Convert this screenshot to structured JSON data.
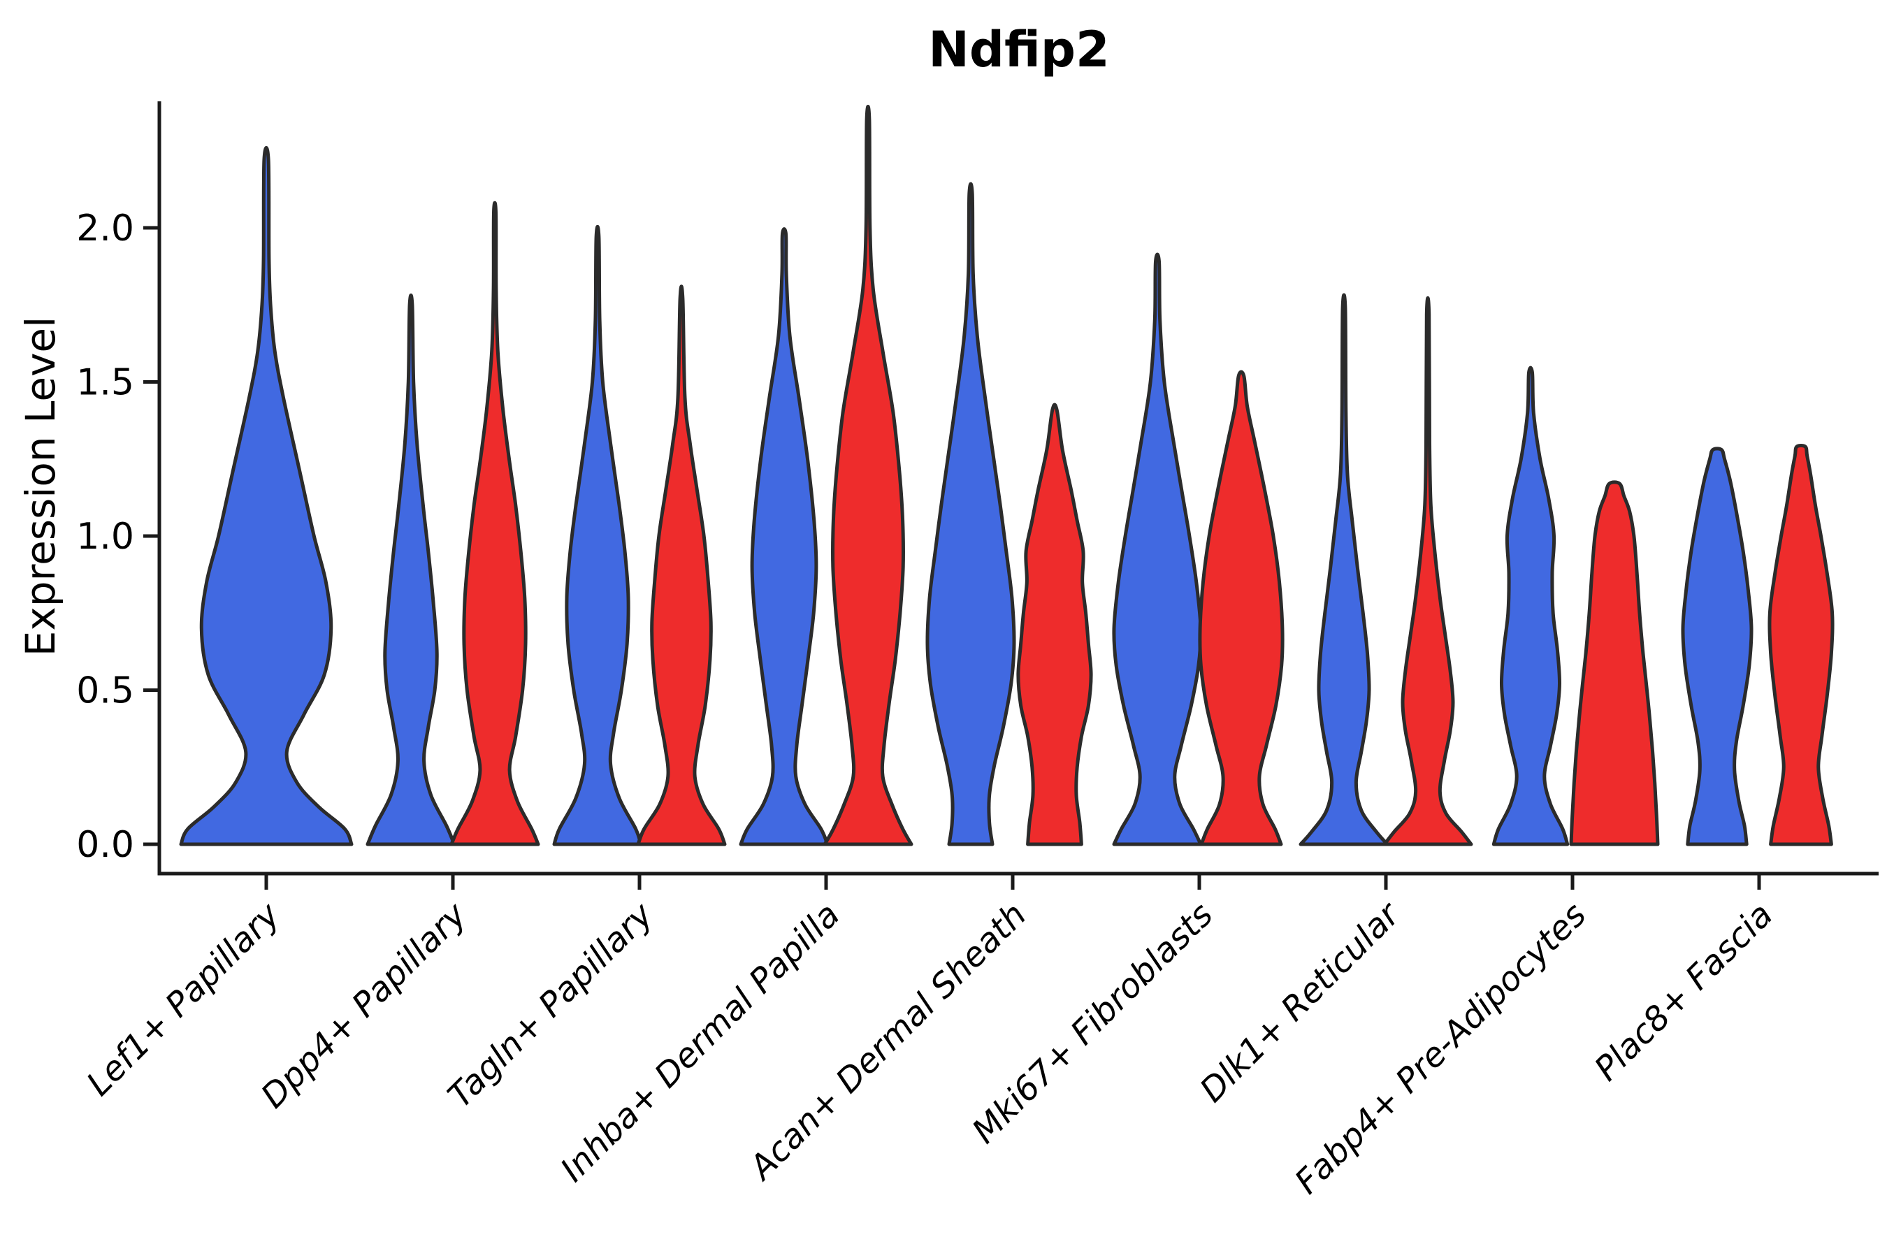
{
  "chart_data": {
    "type": "violin",
    "title": "Ndfip2",
    "ylabel": "Expression Level",
    "xlabel": "",
    "grid": false,
    "legend": "none",
    "ylim": [
      -0.095,
      2.45
    ],
    "yticks": [
      "0.0",
      "0.5",
      "1.0",
      "1.5",
      "2.0"
    ],
    "ytick_values": [
      0,
      0.5,
      1.0,
      1.5,
      2.0
    ],
    "colors": {
      "blue": "#4169E1",
      "red": "#EE2C2C",
      "outline": "#2b2b2b",
      "axis": "#1a1a1a"
    },
    "categories": [
      "Lef1+ Papillary",
      "Dpp4+ Papillary",
      "Tagln+ Papillary",
      "Inhba+ Dermal Papilla",
      "Acan+ Dermal Sheath",
      "Mki67+ Fibroblasts",
      "Dlk1+ Reticular",
      "Fabp4+ Pre-Adipocytes",
      "Plac8+ Fascia"
    ],
    "violins": [
      {
        "category": "Lef1+ Papillary",
        "series": "blue",
        "layout": "single",
        "peak": 2.22,
        "profile": [
          [
            0,
            1.0
          ],
          [
            0.05,
            0.92
          ],
          [
            0.12,
            0.62
          ],
          [
            0.2,
            0.36
          ],
          [
            0.3,
            0.24
          ],
          [
            0.42,
            0.44
          ],
          [
            0.55,
            0.68
          ],
          [
            0.7,
            0.76
          ],
          [
            0.85,
            0.7
          ],
          [
            1.0,
            0.56
          ],
          [
            1.2,
            0.4
          ],
          [
            1.45,
            0.2
          ],
          [
            1.6,
            0.1
          ],
          [
            1.75,
            0.05
          ],
          [
            1.9,
            0.032
          ],
          [
            2.22,
            0.025
          ]
        ]
      },
      {
        "category": "Dpp4+ Papillary",
        "series": "blue",
        "layout": "pair-left",
        "peak": 1.75,
        "profile": [
          [
            0,
            1.0
          ],
          [
            0.06,
            0.82
          ],
          [
            0.16,
            0.46
          ],
          [
            0.27,
            0.3
          ],
          [
            0.38,
            0.4
          ],
          [
            0.5,
            0.55
          ],
          [
            0.62,
            0.6
          ],
          [
            0.78,
            0.52
          ],
          [
            0.95,
            0.4
          ],
          [
            1.1,
            0.28
          ],
          [
            1.3,
            0.14
          ],
          [
            1.5,
            0.06
          ],
          [
            1.75,
            0.03
          ]
        ]
      },
      {
        "category": "Dpp4+ Papillary",
        "series": "red",
        "layout": "pair-right",
        "peak": 2.05,
        "profile": [
          [
            0,
            1.0
          ],
          [
            0.05,
            0.85
          ],
          [
            0.14,
            0.52
          ],
          [
            0.24,
            0.34
          ],
          [
            0.35,
            0.48
          ],
          [
            0.5,
            0.64
          ],
          [
            0.65,
            0.71
          ],
          [
            0.8,
            0.69
          ],
          [
            0.95,
            0.6
          ],
          [
            1.1,
            0.48
          ],
          [
            1.25,
            0.33
          ],
          [
            1.42,
            0.18
          ],
          [
            1.6,
            0.07
          ],
          [
            1.8,
            0.03
          ],
          [
            2.05,
            0.025
          ]
        ]
      },
      {
        "category": "Tagln+ Papillary",
        "series": "blue",
        "layout": "pair-left",
        "peak": 1.97,
        "profile": [
          [
            0,
            1.0
          ],
          [
            0.05,
            0.88
          ],
          [
            0.15,
            0.5
          ],
          [
            0.26,
            0.3
          ],
          [
            0.36,
            0.37
          ],
          [
            0.5,
            0.55
          ],
          [
            0.65,
            0.68
          ],
          [
            0.8,
            0.71
          ],
          [
            0.95,
            0.63
          ],
          [
            1.1,
            0.5
          ],
          [
            1.3,
            0.3
          ],
          [
            1.5,
            0.12
          ],
          [
            1.7,
            0.05
          ],
          [
            1.97,
            0.03
          ]
        ]
      },
      {
        "category": "Tagln+ Papillary",
        "series": "red",
        "layout": "pair-right",
        "peak": 1.77,
        "profile": [
          [
            0,
            1.0
          ],
          [
            0.05,
            0.86
          ],
          [
            0.13,
            0.5
          ],
          [
            0.22,
            0.31
          ],
          [
            0.32,
            0.38
          ],
          [
            0.45,
            0.55
          ],
          [
            0.6,
            0.66
          ],
          [
            0.72,
            0.68
          ],
          [
            0.85,
            0.62
          ],
          [
            1.0,
            0.52
          ],
          [
            1.15,
            0.36
          ],
          [
            1.3,
            0.2
          ],
          [
            1.45,
            0.08
          ],
          [
            1.77,
            0.03
          ]
        ]
      },
      {
        "category": "Inhba+ Dermal Papilla",
        "series": "blue",
        "layout": "pair-left",
        "peak": 1.98,
        "profile": [
          [
            0,
            1.0
          ],
          [
            0.05,
            0.85
          ],
          [
            0.13,
            0.48
          ],
          [
            0.22,
            0.27
          ],
          [
            0.32,
            0.29
          ],
          [
            0.45,
            0.41
          ],
          [
            0.6,
            0.55
          ],
          [
            0.75,
            0.68
          ],
          [
            0.9,
            0.74
          ],
          [
            1.05,
            0.69
          ],
          [
            1.25,
            0.54
          ],
          [
            1.45,
            0.34
          ],
          [
            1.65,
            0.13
          ],
          [
            1.85,
            0.05
          ],
          [
            1.98,
            0.04
          ]
        ]
      },
      {
        "category": "Inhba+ Dermal Papilla",
        "series": "red",
        "layout": "pair-right",
        "peak": 2.35,
        "profile": [
          [
            0,
            1.0
          ],
          [
            0.05,
            0.8
          ],
          [
            0.13,
            0.55
          ],
          [
            0.22,
            0.34
          ],
          [
            0.32,
            0.37
          ],
          [
            0.45,
            0.48
          ],
          [
            0.6,
            0.63
          ],
          [
            0.75,
            0.74
          ],
          [
            0.9,
            0.81
          ],
          [
            1.05,
            0.8
          ],
          [
            1.2,
            0.73
          ],
          [
            1.4,
            0.58
          ],
          [
            1.6,
            0.34
          ],
          [
            1.8,
            0.12
          ],
          [
            2.0,
            0.045
          ],
          [
            2.35,
            0.03
          ]
        ]
      },
      {
        "category": "Acan+ Dermal Sheath",
        "series": "blue",
        "layout": "pair-left",
        "peak": 2.11,
        "profile": [
          [
            0,
            0.5
          ],
          [
            0.07,
            0.43
          ],
          [
            0.16,
            0.43
          ],
          [
            0.26,
            0.55
          ],
          [
            0.38,
            0.75
          ],
          [
            0.52,
            0.93
          ],
          [
            0.65,
            1.0
          ],
          [
            0.8,
            0.95
          ],
          [
            0.95,
            0.82
          ],
          [
            1.1,
            0.68
          ],
          [
            1.25,
            0.53
          ],
          [
            1.45,
            0.33
          ],
          [
            1.65,
            0.15
          ],
          [
            1.85,
            0.055
          ],
          [
            2.11,
            0.035
          ]
        ]
      },
      {
        "category": "Acan+ Dermal Sheath",
        "series": "red",
        "layout": "pair-right",
        "peak": 1.41,
        "profile": [
          [
            0,
            0.62
          ],
          [
            0.07,
            0.58
          ],
          [
            0.16,
            0.5
          ],
          [
            0.25,
            0.52
          ],
          [
            0.35,
            0.62
          ],
          [
            0.45,
            0.78
          ],
          [
            0.55,
            0.84
          ],
          [
            0.65,
            0.78
          ],
          [
            0.75,
            0.72
          ],
          [
            0.85,
            0.64
          ],
          [
            0.95,
            0.66
          ],
          [
            1.05,
            0.52
          ],
          [
            1.15,
            0.38
          ],
          [
            1.28,
            0.18
          ],
          [
            1.41,
            0.05
          ]
        ]
      },
      {
        "category": "Mki67+ Fibroblasts",
        "series": "blue",
        "layout": "pair-left",
        "peak": 1.89,
        "profile": [
          [
            0,
            1.0
          ],
          [
            0.05,
            0.83
          ],
          [
            0.13,
            0.52
          ],
          [
            0.22,
            0.4
          ],
          [
            0.32,
            0.55
          ],
          [
            0.45,
            0.78
          ],
          [
            0.58,
            0.95
          ],
          [
            0.7,
            1.0
          ],
          [
            0.85,
            0.9
          ],
          [
            1.0,
            0.74
          ],
          [
            1.15,
            0.56
          ],
          [
            1.3,
            0.38
          ],
          [
            1.5,
            0.16
          ],
          [
            1.7,
            0.06
          ],
          [
            1.89,
            0.04
          ]
        ]
      },
      {
        "category": "Mki67+ Fibroblasts",
        "series": "red",
        "layout": "pair-right",
        "peak": 1.52,
        "profile": [
          [
            0,
            0.92
          ],
          [
            0.05,
            0.78
          ],
          [
            0.13,
            0.5
          ],
          [
            0.22,
            0.42
          ],
          [
            0.32,
            0.58
          ],
          [
            0.45,
            0.8
          ],
          [
            0.58,
            0.93
          ],
          [
            0.7,
            0.95
          ],
          [
            0.85,
            0.88
          ],
          [
            1.0,
            0.74
          ],
          [
            1.15,
            0.54
          ],
          [
            1.3,
            0.32
          ],
          [
            1.42,
            0.14
          ],
          [
            1.52,
            0.06
          ]
        ]
      },
      {
        "category": "Dlk1+ Reticular",
        "series": "blue",
        "layout": "pair-left",
        "peak": 1.74,
        "profile": [
          [
            0,
            1.0
          ],
          [
            0.04,
            0.75
          ],
          [
            0.11,
            0.4
          ],
          [
            0.2,
            0.28
          ],
          [
            0.3,
            0.4
          ],
          [
            0.4,
            0.52
          ],
          [
            0.5,
            0.58
          ],
          [
            0.62,
            0.54
          ],
          [
            0.75,
            0.44
          ],
          [
            0.9,
            0.31
          ],
          [
            1.05,
            0.19
          ],
          [
            1.2,
            0.08
          ],
          [
            1.4,
            0.045
          ],
          [
            1.74,
            0.03
          ]
        ]
      },
      {
        "category": "Dlk1+ Reticular",
        "series": "red",
        "layout": "pair-right",
        "peak": 1.72,
        "profile": [
          [
            0,
            1.0
          ],
          [
            0.04,
            0.78
          ],
          [
            0.1,
            0.42
          ],
          [
            0.17,
            0.28
          ],
          [
            0.27,
            0.38
          ],
          [
            0.37,
            0.52
          ],
          [
            0.46,
            0.58
          ],
          [
            0.56,
            0.52
          ],
          [
            0.68,
            0.4
          ],
          [
            0.8,
            0.28
          ],
          [
            0.95,
            0.16
          ],
          [
            1.1,
            0.07
          ],
          [
            1.3,
            0.04
          ],
          [
            1.72,
            0.028
          ]
        ]
      },
      {
        "category": "Fabp4+ Pre-Adipocytes",
        "series": "blue",
        "layout": "pair-left",
        "peak": 1.53,
        "profile": [
          [
            0,
            0.85
          ],
          [
            0.05,
            0.74
          ],
          [
            0.13,
            0.46
          ],
          [
            0.22,
            0.32
          ],
          [
            0.32,
            0.46
          ],
          [
            0.42,
            0.6
          ],
          [
            0.52,
            0.67
          ],
          [
            0.63,
            0.62
          ],
          [
            0.75,
            0.52
          ],
          [
            0.88,
            0.5
          ],
          [
            1.0,
            0.54
          ],
          [
            1.12,
            0.42
          ],
          [
            1.25,
            0.22
          ],
          [
            1.4,
            0.07
          ],
          [
            1.53,
            0.04
          ]
        ]
      },
      {
        "category": "Fabp4+ Pre-Adipocytes",
        "series": "red",
        "layout": "pair-right",
        "peak": 1.17,
        "profile": [
          [
            0,
            1.0
          ],
          [
            0.1,
            0.97
          ],
          [
            0.2,
            0.93
          ],
          [
            0.3,
            0.88
          ],
          [
            0.4,
            0.82
          ],
          [
            0.5,
            0.75
          ],
          [
            0.62,
            0.66
          ],
          [
            0.75,
            0.58
          ],
          [
            0.88,
            0.52
          ],
          [
            1.0,
            0.45
          ],
          [
            1.08,
            0.35
          ],
          [
            1.13,
            0.22
          ],
          [
            1.17,
            0.12
          ]
        ]
      },
      {
        "category": "Plac8+ Fascia",
        "series": "blue",
        "layout": "pair-left",
        "peak": 1.28,
        "profile": [
          [
            0,
            0.68
          ],
          [
            0.06,
            0.63
          ],
          [
            0.14,
            0.5
          ],
          [
            0.24,
            0.4
          ],
          [
            0.33,
            0.44
          ],
          [
            0.45,
            0.6
          ],
          [
            0.58,
            0.74
          ],
          [
            0.7,
            0.79
          ],
          [
            0.82,
            0.72
          ],
          [
            0.95,
            0.6
          ],
          [
            1.08,
            0.44
          ],
          [
            1.18,
            0.3
          ],
          [
            1.25,
            0.17
          ],
          [
            1.28,
            0.1
          ]
        ]
      },
      {
        "category": "Plac8+ Fascia",
        "series": "red",
        "layout": "pair-right",
        "peak": 1.29,
        "profile": [
          [
            0,
            0.7
          ],
          [
            0.06,
            0.64
          ],
          [
            0.15,
            0.5
          ],
          [
            0.25,
            0.4
          ],
          [
            0.35,
            0.48
          ],
          [
            0.48,
            0.6
          ],
          [
            0.62,
            0.7
          ],
          [
            0.75,
            0.72
          ],
          [
            0.88,
            0.6
          ],
          [
            1.0,
            0.46
          ],
          [
            1.1,
            0.33
          ],
          [
            1.2,
            0.22
          ],
          [
            1.26,
            0.14
          ],
          [
            1.29,
            0.1
          ]
        ]
      }
    ]
  }
}
